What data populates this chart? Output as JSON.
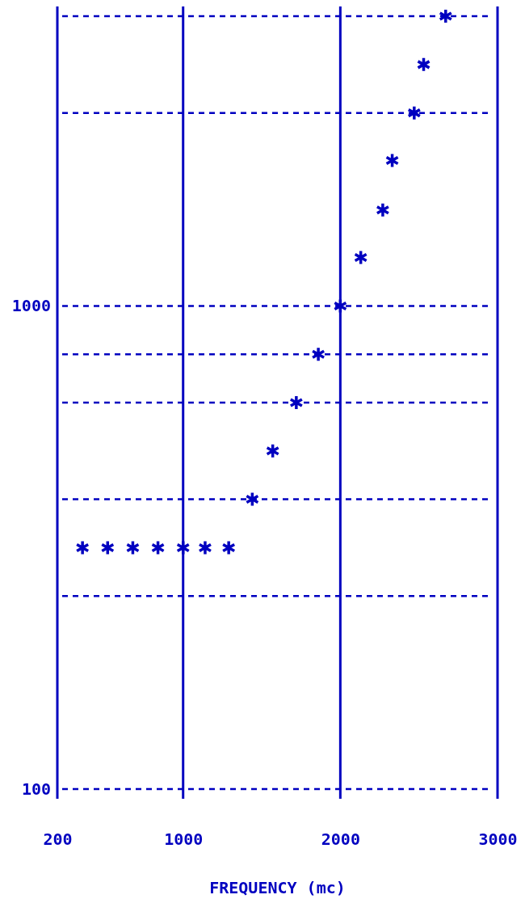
{
  "chart_data": {
    "type": "scatter",
    "xlabel": "FREQUENCY (mc)",
    "x": [
      360,
      520,
      680,
      840,
      1000,
      1140,
      1290,
      1440,
      1570,
      1720,
      1860,
      2000,
      2130,
      2270,
      2330,
      2470,
      2530,
      2670
    ],
    "series": [
      {
        "color": "#0000c0",
        "values": [
          316,
          316,
          316,
          316,
          316,
          316,
          316,
          398,
          501,
          631,
          794,
          1000,
          1260,
          1580,
          2000,
          2510,
          3160,
          3980
        ]
      }
    ],
    "xlim": [
      200,
      3000
    ],
    "xticks": [
      200,
      1000,
      2000,
      3000
    ],
    "ylim": [
      100,
      3980
    ],
    "yticks": [
      100,
      1000
    ],
    "log": "y",
    "grid": "x",
    "marker": "cross",
    "ref_lines": [
      {
        "axis": "y",
        "value": 100,
        "line_style": "dashed"
      },
      {
        "axis": "y",
        "value": 251,
        "line_style": "dashed"
      },
      {
        "axis": "y",
        "value": 398,
        "line_style": "dashed"
      },
      {
        "axis": "y",
        "value": 631,
        "line_style": "dashed"
      },
      {
        "axis": "y",
        "value": 794,
        "line_style": "dashed"
      },
      {
        "axis": "y",
        "value": 1000,
        "line_style": "dashed"
      },
      {
        "axis": "y",
        "value": 2510,
        "line_style": "dashed"
      },
      {
        "axis": "y",
        "value": 3980,
        "line_style": "dashed"
      }
    ]
  }
}
